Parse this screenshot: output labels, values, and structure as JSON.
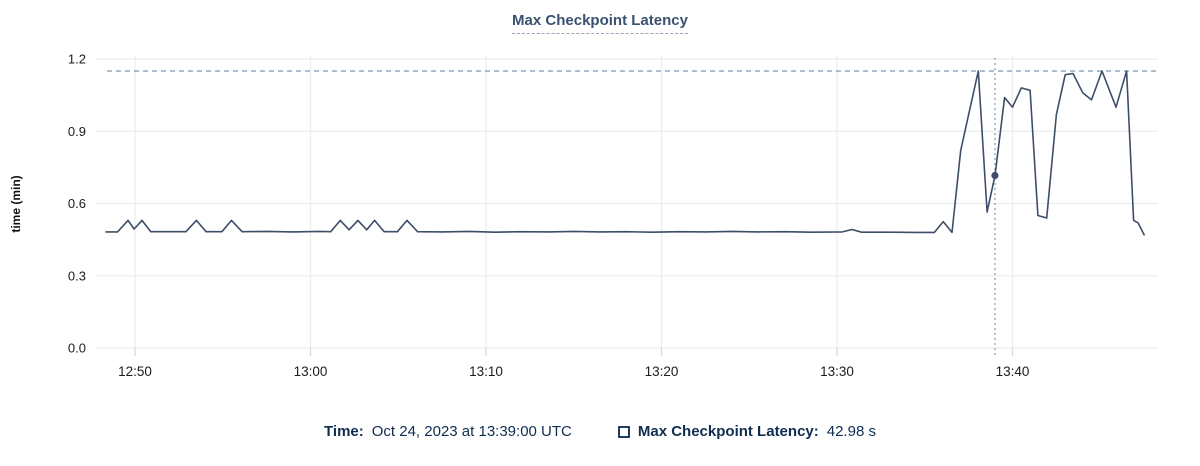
{
  "title": "Max Checkpoint Latency",
  "y_axis_label": "time (min)",
  "tooltip": {
    "time_label": "Time:",
    "time_value": "Oct 24, 2023 at 13:39:00 UTC",
    "series_label": "Max Checkpoint Latency:",
    "series_value": "42.98 s"
  },
  "icons": {
    "legend_swatch": "unchecked-square"
  },
  "colors": {
    "background": "#ffffff",
    "line": "#3e4e68",
    "marker": "#3e4e68",
    "title_text": "#3a526f",
    "legend_text": "#0f2d51",
    "axis_text": "#1c1c1c",
    "grid": "#ededed",
    "tick": "#d9d9d9",
    "reference_dash": "#8ba2b8",
    "cursor_dash": "#97abbe"
  },
  "chart_data": {
    "type": "line",
    "title": "Max Checkpoint Latency",
    "xlabel": "",
    "ylabel": "time (min)",
    "ylim": [
      0,
      1.2
    ],
    "y_ticks": [
      0.0,
      0.3,
      0.6,
      0.9,
      1.2
    ],
    "grid": true,
    "legend_position": "bottom",
    "x_axis_unit": "minutes since 12:00 UTC",
    "xlim": [
      48.0,
      108.3
    ],
    "x_ticks": [
      {
        "t": 50,
        "label": "12:50"
      },
      {
        "t": 60,
        "label": "13:00"
      },
      {
        "t": 70,
        "label": "13:10"
      },
      {
        "t": 80,
        "label": "13:20"
      },
      {
        "t": 90,
        "label": "13:30"
      },
      {
        "t": 100,
        "label": "13:40"
      }
    ],
    "reference_max_line": 1.15,
    "cursor": {
      "t": 99,
      "value": 0.7163,
      "time_text": "Oct 24, 2023 at 13:39:00 UTC",
      "value_text": "42.98 s"
    },
    "series": [
      {
        "name": "Max Checkpoint Latency",
        "unit": "min",
        "points": [
          [
            48.35,
            0.482
          ],
          [
            49.0,
            0.482
          ],
          [
            49.6,
            0.53
          ],
          [
            49.95,
            0.494
          ],
          [
            50.4,
            0.53
          ],
          [
            50.9,
            0.483
          ],
          [
            52.9,
            0.483
          ],
          [
            53.5,
            0.53
          ],
          [
            54.05,
            0.483
          ],
          [
            54.95,
            0.483
          ],
          [
            55.5,
            0.53
          ],
          [
            56.1,
            0.483
          ],
          [
            57.5,
            0.484
          ],
          [
            59.0,
            0.482
          ],
          [
            60.5,
            0.484
          ],
          [
            61.15,
            0.483
          ],
          [
            61.7,
            0.53
          ],
          [
            62.2,
            0.491
          ],
          [
            62.7,
            0.53
          ],
          [
            63.2,
            0.491
          ],
          [
            63.65,
            0.53
          ],
          [
            64.2,
            0.483
          ],
          [
            64.95,
            0.483
          ],
          [
            65.5,
            0.53
          ],
          [
            66.1,
            0.483
          ],
          [
            67.5,
            0.482
          ],
          [
            69.0,
            0.484
          ],
          [
            70.5,
            0.481
          ],
          [
            72.0,
            0.483
          ],
          [
            73.5,
            0.482
          ],
          [
            75.0,
            0.484
          ],
          [
            76.5,
            0.482
          ],
          [
            78.0,
            0.483
          ],
          [
            79.5,
            0.481
          ],
          [
            81.0,
            0.483
          ],
          [
            82.5,
            0.482
          ],
          [
            84.0,
            0.484
          ],
          [
            85.5,
            0.482
          ],
          [
            87.0,
            0.483
          ],
          [
            88.5,
            0.481
          ],
          [
            90.3,
            0.482
          ],
          [
            90.85,
            0.492
          ],
          [
            91.4,
            0.481
          ],
          [
            93.0,
            0.481
          ],
          [
            94.5,
            0.48
          ],
          [
            95.55,
            0.48
          ],
          [
            96.05,
            0.525
          ],
          [
            96.55,
            0.48
          ],
          [
            97.05,
            0.82
          ],
          [
            98.05,
            1.15
          ],
          [
            98.55,
            0.565
          ],
          [
            99.0,
            0.716
          ],
          [
            99.55,
            1.04
          ],
          [
            100.0,
            1.0
          ],
          [
            100.5,
            1.08
          ],
          [
            101.0,
            1.07
          ],
          [
            101.45,
            0.55
          ],
          [
            101.95,
            0.54
          ],
          [
            102.5,
            0.97
          ],
          [
            103.0,
            1.135
          ],
          [
            103.45,
            1.14
          ],
          [
            104.0,
            1.06
          ],
          [
            104.5,
            1.03
          ],
          [
            105.1,
            1.15
          ],
          [
            105.9,
            1.0
          ],
          [
            106.5,
            1.15
          ],
          [
            106.9,
            0.53
          ],
          [
            107.15,
            0.52
          ],
          [
            107.5,
            0.47
          ]
        ]
      }
    ]
  }
}
